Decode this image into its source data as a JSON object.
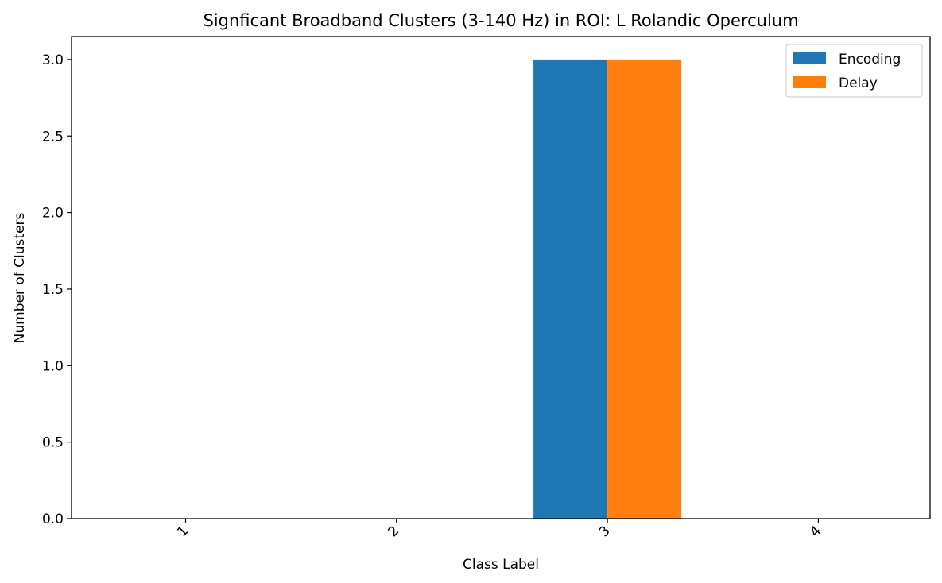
{
  "chart_data": {
    "type": "bar",
    "title": "Signficant Broadband Clusters (3-140 Hz) in ROI: L Rolandic Operculum",
    "xlabel": "Class Label",
    "ylabel": "Number of Clusters",
    "categories": [
      "1",
      "2",
      "3",
      "4"
    ],
    "series": [
      {
        "name": "Encoding",
        "values": [
          0,
          0,
          3,
          0
        ],
        "color": "#1f77b4"
      },
      {
        "name": "Delay",
        "values": [
          0,
          0,
          3,
          0
        ],
        "color": "#ff7f0e"
      }
    ],
    "ylim": [
      0,
      3.15
    ],
    "yticks": [
      "0.0",
      "0.5",
      "1.0",
      "1.5",
      "2.0",
      "2.5",
      "3.0"
    ],
    "grid": false,
    "legend_position": "top-right"
  }
}
